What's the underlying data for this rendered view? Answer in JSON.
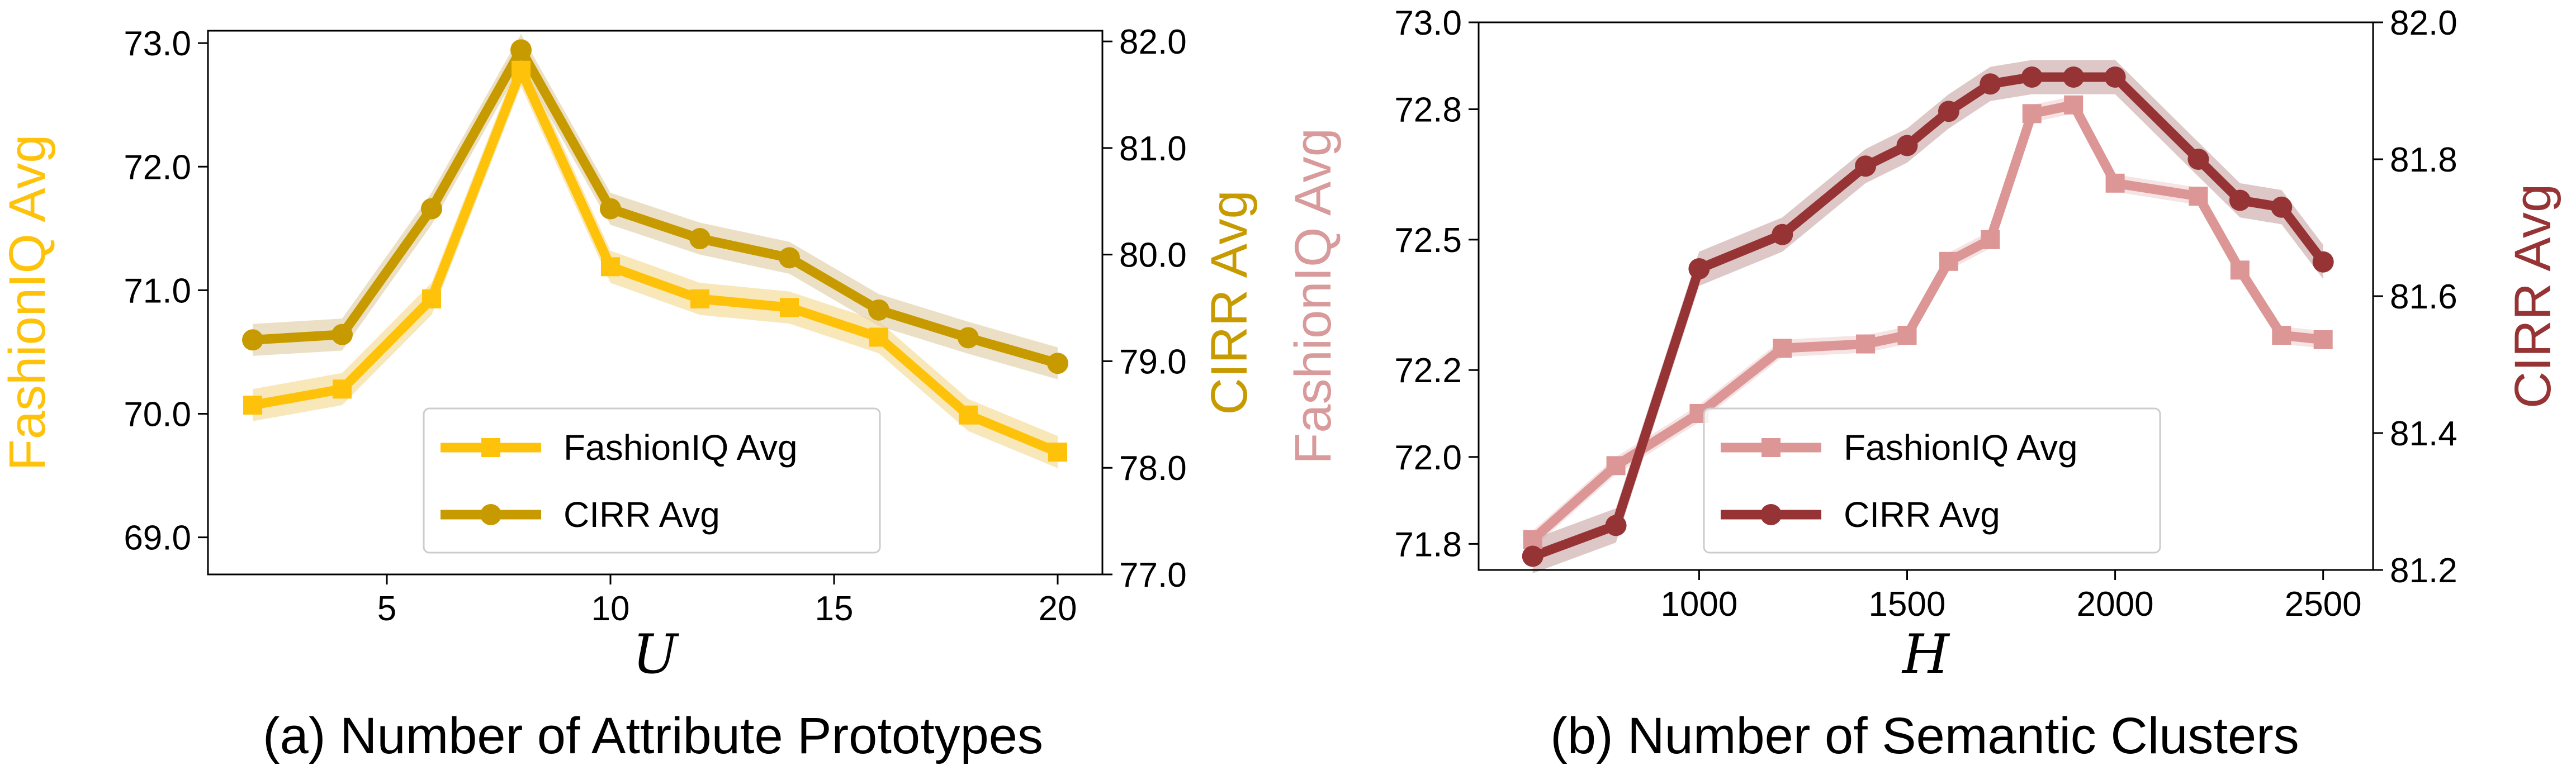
{
  "chart_data": [
    {
      "type": "line",
      "panel": "a",
      "caption": "(a) Number of Attribute Prototypes",
      "xlabel": "U",
      "xlim": [
        1.0,
        21.0
      ],
      "x_ticks": [
        5,
        10,
        15,
        20
      ],
      "x": [
        2,
        4,
        6,
        8,
        10,
        12,
        14,
        16,
        18,
        20
      ],
      "y_left": {
        "label": "FashionIQ Avg",
        "lim": [
          68.7,
          73.1
        ],
        "ticks": [
          69.0,
          70.0,
          71.0,
          72.0,
          73.0
        ],
        "tick_labels": [
          "69.0",
          "70.0",
          "71.0",
          "72.0",
          "73.0"
        ],
        "color": "#FFC20A"
      },
      "y_right": {
        "label": "CIRR Avg",
        "lim": [
          77.0,
          82.1
        ],
        "ticks": [
          77.0,
          78.0,
          79.0,
          80.0,
          81.0,
          82.0
        ],
        "tick_labels": [
          "77.0",
          "78.0",
          "79.0",
          "80.0",
          "81.0",
          "82.0"
        ],
        "color": "#C79A00"
      },
      "series": [
        {
          "name": "FashionIQ Avg",
          "axis": "left",
          "marker": "square",
          "color": "#FFC20A",
          "band_color": "#F6DFA0",
          "values": [
            70.07,
            70.2,
            70.93,
            72.78,
            71.19,
            70.93,
            70.86,
            70.62,
            69.99,
            69.69
          ],
          "band": 0.13
        },
        {
          "name": "CIRR Avg",
          "axis": "right",
          "marker": "circle",
          "color": "#C79A00",
          "band_color": "#E4D6B2",
          "values": [
            79.2,
            79.25,
            80.43,
            81.92,
            80.43,
            80.15,
            79.97,
            79.48,
            79.22,
            78.98
          ],
          "band": 0.15
        }
      ],
      "legend_position": "lower-center"
    },
    {
      "type": "line",
      "panel": "b",
      "caption": "(b) Number of Semantic Clusters",
      "xlabel": "H",
      "xlim": [
        470,
        2620
      ],
      "x_ticks": [
        1000,
        1500,
        2000,
        2500
      ],
      "x": [
        600,
        800,
        1000,
        1200,
        1400,
        1500,
        1600,
        1700,
        1800,
        1900,
        2000,
        2200,
        2300,
        2400,
        2500
      ],
      "y_left": {
        "label": "FashionIQ Avg",
        "lim": [
          71.74,
          73.0
        ],
        "ticks": [
          71.8,
          72.0,
          72.2,
          72.5,
          72.8,
          73.0
        ],
        "tick_labels": [
          "71.8",
          "72.0",
          "72.2",
          "72.5",
          "72.8",
          "73.0"
        ],
        "color": "#D89A9A"
      },
      "y_right": {
        "label": "CIRR Avg",
        "lim": [
          81.2,
          82.0
        ],
        "ticks": [
          81.2,
          81.4,
          81.6,
          81.8,
          82.0
        ],
        "tick_labels": [
          "81.2",
          "81.4",
          "81.6",
          "81.8",
          "82.0"
        ],
        "color": "#963334"
      },
      "series": [
        {
          "name": "FashionIQ Avg",
          "axis": "left",
          "marker": "square",
          "color": "#DC9696",
          "band_color": "#F3DADA",
          "values": [
            71.81,
            71.98,
            72.1,
            72.25,
            72.26,
            72.28,
            72.45,
            72.5,
            72.79,
            72.81,
            72.63,
            72.6,
            72.43,
            72.28,
            72.27
          ],
          "band": 0.02
        },
        {
          "name": "CIRR Avg",
          "axis": "right",
          "marker": "circle",
          "color": "#963334",
          "band_color": "#D2B4B4",
          "values": [
            81.22,
            81.265,
            81.64,
            81.69,
            81.79,
            81.82,
            81.87,
            81.91,
            81.92,
            81.92,
            81.92,
            81.8,
            81.74,
            81.73,
            81.65
          ],
          "band": 0.025
        }
      ],
      "legend_position": "lower-center"
    }
  ]
}
